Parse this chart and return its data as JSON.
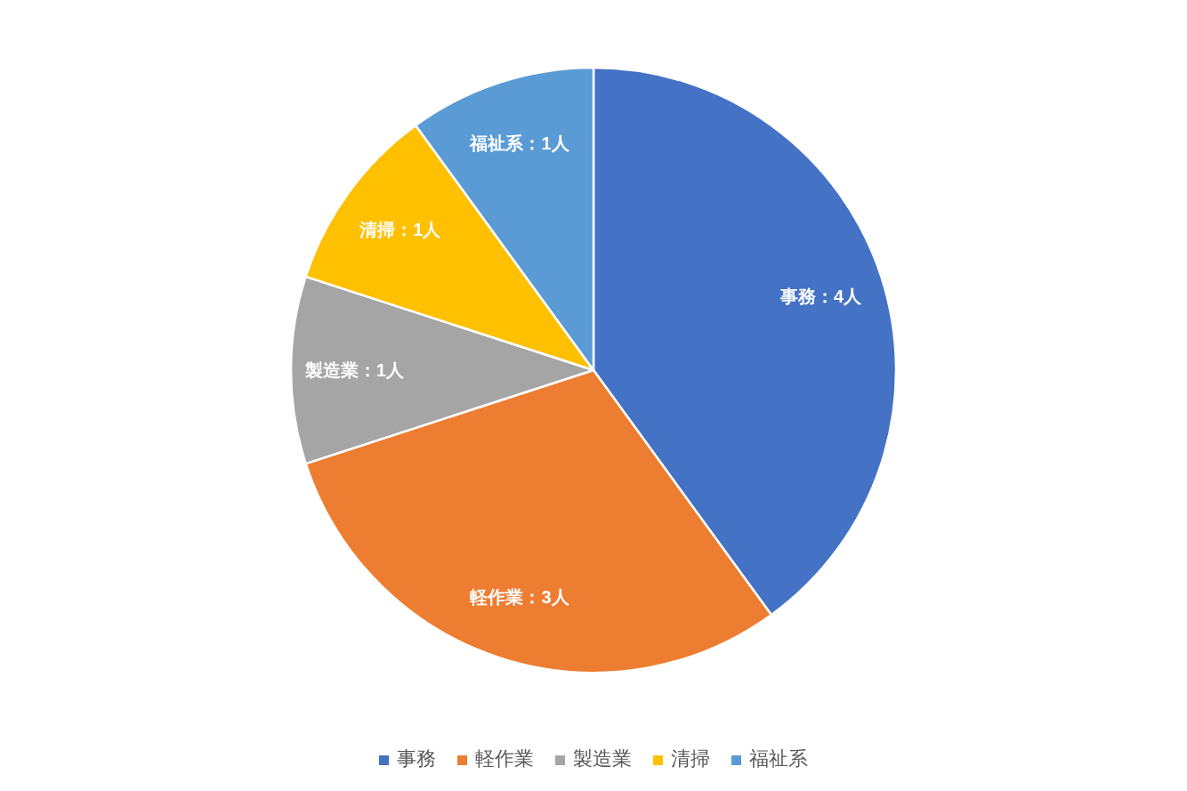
{
  "chart_data": {
    "type": "pie",
    "categories": [
      "事務",
      "軽作業",
      "製造業",
      "清掃",
      "福祉系"
    ],
    "values": [
      4,
      3,
      1,
      1,
      1
    ],
    "colors": [
      "#4472c4",
      "#ed7d31",
      "#a5a5a5",
      "#ffc000",
      "#5b9bd5"
    ],
    "value_labels": [
      "事務：4人",
      "軽作業：3人",
      "製造業：1人",
      "清掃：1人",
      "福祉系：1人"
    ],
    "legend": "bottom"
  }
}
